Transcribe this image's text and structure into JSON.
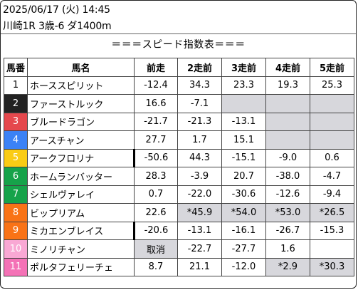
{
  "header": {
    "datetime": "2025/06/17 (火) 14:45",
    "race": "川崎1R 3歳-6 ダ1400m"
  },
  "table_title": "＝＝＝スピード指数表＝＝＝",
  "columns": [
    "馬番",
    "馬名",
    "前走",
    "2走前",
    "3走前",
    "4走前",
    "5走前"
  ],
  "colors": {
    "frame1": "#ffffff",
    "frame2": "#222222",
    "frame3": "#e5484d",
    "frame4": "#3b82f6",
    "frame5": "#facc15",
    "frame6": "#16a34a",
    "frame7": "#f97316",
    "frame8": "#f472b6",
    "gray_cell": "#d7d7dc"
  },
  "rows": [
    {
      "no": "1",
      "frame": "#ffffff",
      "no_color": "#000000",
      "name": "ホーススピリット",
      "vals": [
        "-12.4",
        "34.3",
        "23.3",
        "19.3",
        "25.3"
      ],
      "gray": [
        false,
        false,
        false,
        false,
        false
      ],
      "markL": [
        false,
        false,
        false,
        false,
        false
      ]
    },
    {
      "no": "2",
      "frame": "#222222",
      "no_color": "#ffffff",
      "name": "ファーストルック",
      "vals": [
        "16.6",
        "-7.1",
        "",
        "",
        ""
      ],
      "gray": [
        false,
        false,
        true,
        true,
        true
      ],
      "markL": [
        false,
        false,
        false,
        false,
        false
      ]
    },
    {
      "no": "3",
      "frame": "#e5484d",
      "no_color": "#ffffff",
      "name": "ブルードラゴン",
      "vals": [
        "-21.7",
        "-21.3",
        "-13.1",
        "",
        ""
      ],
      "gray": [
        false,
        false,
        false,
        true,
        true
      ],
      "markL": [
        false,
        false,
        false,
        false,
        false
      ]
    },
    {
      "no": "4",
      "frame": "#3b82f6",
      "no_color": "#ffffff",
      "name": "アースチャン",
      "vals": [
        "27.7",
        "1.7",
        "15.1",
        "",
        ""
      ],
      "gray": [
        false,
        false,
        false,
        true,
        true
      ],
      "markL": [
        false,
        false,
        false,
        false,
        false
      ]
    },
    {
      "no": "5",
      "frame": "#facc15",
      "no_color": "#ffffff",
      "name": "アークフロリナ",
      "vals": [
        "-50.6",
        "44.3",
        "-15.1",
        "-9.0",
        "0.6"
      ],
      "gray": [
        false,
        false,
        false,
        false,
        false
      ],
      "markL": [
        true,
        false,
        false,
        false,
        false
      ]
    },
    {
      "no": "6",
      "frame": "#16a34a",
      "no_color": "#ffffff",
      "name": "ホームランバッター",
      "vals": [
        "28.3",
        "-3.9",
        "20.7",
        "-38.0",
        "-4.7"
      ],
      "gray": [
        false,
        false,
        false,
        false,
        false
      ],
      "markL": [
        false,
        false,
        false,
        false,
        false
      ]
    },
    {
      "no": "7",
      "frame": "#16a34a",
      "no_color": "#ffffff",
      "name": "シェルヴァレイ",
      "vals": [
        "0.7",
        "-22.0",
        "-30.6",
        "-12.6",
        "-9.4"
      ],
      "gray": [
        false,
        false,
        false,
        false,
        false
      ],
      "markL": [
        false,
        false,
        false,
        false,
        false
      ]
    },
    {
      "no": "8",
      "frame": "#f97316",
      "no_color": "#ffffff",
      "name": "ビップリアム",
      "vals": [
        "22.6",
        "*45.9",
        "*54.0",
        "*53.0",
        "*26.5"
      ],
      "gray": [
        false,
        true,
        true,
        true,
        true
      ],
      "markL": [
        false,
        false,
        false,
        false,
        false
      ]
    },
    {
      "no": "9",
      "frame": "#f97316",
      "no_color": "#ffffff",
      "name": "ミカエンブレイス",
      "vals": [
        "-20.6",
        "-13.1",
        "-16.1",
        "-26.7",
        "-15.3"
      ],
      "gray": [
        false,
        false,
        false,
        false,
        false
      ],
      "markL": [
        true,
        false,
        false,
        false,
        false
      ]
    },
    {
      "no": "10",
      "frame": "#f9a8d4",
      "no_color": "#ffffff",
      "name": "ミノリチャン",
      "vals": [
        "取消",
        "-22.7",
        "-27.7",
        "1.6",
        ""
      ],
      "gray": [
        true,
        false,
        false,
        false,
        false
      ],
      "markL": [
        false,
        false,
        false,
        false,
        false
      ]
    },
    {
      "no": "11",
      "frame": "#f472b6",
      "no_color": "#ffffff",
      "name": "ポルタフェリーチェ",
      "vals": [
        "8.7",
        "21.1",
        "-12.0",
        "*2.9",
        "*30.3"
      ],
      "gray": [
        false,
        false,
        false,
        true,
        true
      ],
      "markL": [
        false,
        false,
        false,
        false,
        false
      ]
    }
  ]
}
